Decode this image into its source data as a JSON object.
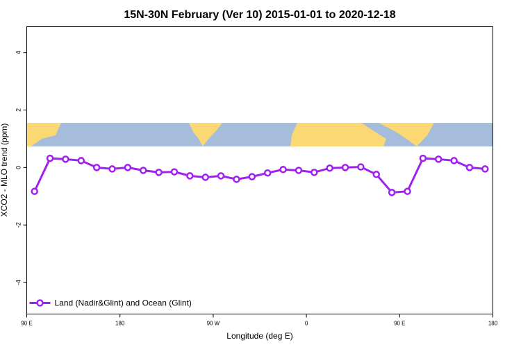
{
  "chart_data": {
    "type": "line",
    "title": "15N-30N February (Ver 10)   2015-01-01 to 2020-12-18",
    "xlabel": "Longitude (deg E)",
    "ylabel": "XCO2 - MLO trend (ppm)",
    "x": [
      97.5,
      112.5,
      127.5,
      142.5,
      157.5,
      172.5,
      187.5,
      202.5,
      217.5,
      232.5,
      247.5,
      262.5,
      277.5,
      292.5,
      307.5,
      322.5,
      337.5,
      352.5,
      367.5,
      382.5,
      397.5,
      412.5,
      427.5,
      442.5,
      457.5,
      472.5,
      487.5,
      502.5,
      517.5,
      532.5
    ],
    "series": [
      {
        "name": "Land (Nadir&Glint) and Ocean (Glint)",
        "color": "#a020f0",
        "values": [
          -0.83,
          0.32,
          0.29,
          0.24,
          0.0,
          -0.05,
          0.0,
          -0.1,
          -0.17,
          -0.15,
          -0.29,
          -0.34,
          -0.29,
          -0.41,
          -0.32,
          -0.19,
          -0.07,
          -0.1,
          -0.17,
          -0.02,
          0.0,
          0.02,
          -0.24,
          -0.87,
          -0.83,
          0.32,
          0.29,
          0.24,
          0.0,
          -0.05
        ]
      }
    ],
    "xlim": [
      90,
      540
    ],
    "xticks": [
      {
        "value": 90,
        "label": "90 E"
      },
      180,
      {
        "value": 270,
        "label": "90 W"
      },
      {
        "value": 360,
        "label": "0"
      },
      {
        "value": 450,
        "label": "90 E"
      },
      {
        "value": 540,
        "label": "180"
      }
    ],
    "ylim": [
      -5.1,
      4.9
    ],
    "yticks": [
      -4,
      -2,
      0,
      2,
      4
    ],
    "legend": "bottom-left"
  }
}
